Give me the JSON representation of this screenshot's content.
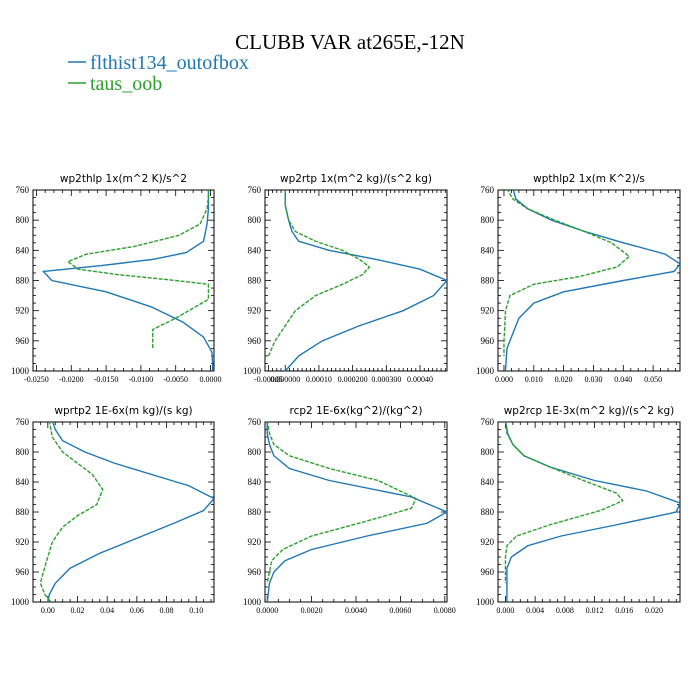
{
  "title": "CLUBB VAR at265E,-12N",
  "legend": [
    {
      "label": "flthist134_outofbox",
      "color": "#1f77b4",
      "dash": "solid"
    },
    {
      "label": "taus_oob",
      "color": "#2ca02c",
      "dash": "dashed"
    }
  ],
  "chart_data": [
    {
      "type": "line",
      "title": "wp2thlp  1x(m^2 K)/s^2",
      "xlim": [
        -0.0255,
        0.0005
      ],
      "ylim": [
        760,
        1000
      ],
      "y_inverted": true,
      "yticks": [
        "760",
        "800",
        "840",
        "880",
        "920",
        "960",
        "1000"
      ],
      "xticks": [
        {
          "v": -0.025,
          "label": "-0.0250"
        },
        {
          "v": -0.02,
          "label": "-0.0200"
        },
        {
          "v": -0.015,
          "label": "-0.0150"
        },
        {
          "v": -0.01,
          "label": "-0.0100"
        },
        {
          "v": -0.005,
          "label": "-0.0050"
        },
        {
          "v": 0.0,
          "label": "0.0000"
        }
      ],
      "series": [
        {
          "name": "flthist134_outofbox",
          "color": "#1f77b4",
          "dash": "solid",
          "x": [
            -0.0003,
            -0.0003,
            -0.0003,
            -0.0005,
            -0.001,
            -0.0035,
            -0.0083,
            -0.0155,
            -0.024,
            -0.0228,
            -0.015,
            -0.0085,
            -0.004,
            -0.001,
            0.0002,
            0.0003,
            0.0003,
            0.0003
          ],
          "y": [
            758,
            770,
            785,
            805,
            828,
            843,
            852,
            860,
            868,
            880,
            895,
            915,
            935,
            955,
            975,
            990,
            995,
            1000
          ]
        },
        {
          "name": "taus_oob",
          "color": "#2ca02c",
          "dash": "dashed",
          "x": [
            -0.0003,
            -0.0003,
            -0.0005,
            -0.0015,
            -0.0045,
            -0.011,
            -0.0178,
            -0.0205,
            -0.019,
            -0.0135,
            -0.005,
            -0.0003,
            -0.0003,
            -0.005,
            -0.0083,
            -0.0083,
            -0.0083
          ],
          "y": [
            758,
            770,
            785,
            805,
            820,
            835,
            845,
            855,
            865,
            872,
            880,
            885,
            905,
            930,
            945,
            965,
            970
          ]
        }
      ]
    },
    {
      "type": "line",
      "title": "wp2rtp  1x(m^2 kg)/(s^2 kg)",
      "xlim": [
        -6e-05,
        0.00048
      ],
      "ylim": [
        760,
        1000
      ],
      "y_inverted": true,
      "yticks": [
        "760",
        "800",
        "840",
        "880",
        "920",
        "960",
        "1000"
      ],
      "xticks": [
        {
          "v": -5e-05,
          "label": "-0.00005"
        },
        {
          "v": 0.0,
          "label": "0.000000"
        },
        {
          "v": 0.0001,
          "label": "0.00010"
        },
        {
          "v": 0.0002,
          "label": "0.000200"
        },
        {
          "v": 0.0003,
          "label": "0.000300"
        },
        {
          "v": 0.0004,
          "label": "0.00040"
        }
      ],
      "series": [
        {
          "name": "flthist134_outofbox",
          "color": "#1f77b4",
          "dash": "solid",
          "x": [
            0.0,
            0.0,
            1e-05,
            2e-05,
            4e-05,
            0.00013,
            0.00027,
            0.0004,
            0.00048,
            0.00044,
            0.00035,
            0.00022,
            0.00011,
            4e-05,
            1e-05,
            0.0
          ],
          "y": [
            758,
            780,
            800,
            815,
            828,
            840,
            852,
            865,
            880,
            900,
            920,
            940,
            960,
            980,
            995,
            1000
          ]
        },
        {
          "name": "taus_oob",
          "color": "#2ca02c",
          "dash": "dashed",
          "x": [
            0.0,
            0.0,
            1e-05,
            3e-05,
            9e-05,
            0.00017,
            0.00022,
            0.00025,
            0.00023,
            0.00017,
            9e-05,
            3e-05,
            0.0,
            -3e-05,
            -5e-05
          ],
          "y": [
            758,
            780,
            800,
            815,
            828,
            840,
            852,
            862,
            872,
            885,
            900,
            920,
            940,
            960,
            980
          ]
        }
      ]
    },
    {
      "type": "line",
      "title": "wpthlp2  1x(m K^2)/s",
      "xlim": [
        -0.002,
        0.059
      ],
      "ylim": [
        760,
        1000
      ],
      "y_inverted": true,
      "yticks": [
        "760",
        "800",
        "840",
        "880",
        "920",
        "960",
        "1000"
      ],
      "xticks": [
        {
          "v": 0.0,
          "label": "0.000"
        },
        {
          "v": 0.01,
          "label": "0.010"
        },
        {
          "v": 0.02,
          "label": "0.020"
        },
        {
          "v": 0.03,
          "label": "0.030"
        },
        {
          "v": 0.04,
          "label": "0.040"
        },
        {
          "v": 0.05,
          "label": "0.050"
        }
      ],
      "series": [
        {
          "name": "flthist134_outofbox",
          "color": "#1f77b4",
          "dash": "solid",
          "x": [
            0.003,
            0.004,
            0.008,
            0.016,
            0.027,
            0.04,
            0.054,
            0.059,
            0.057,
            0.04,
            0.02,
            0.01,
            0.005,
            0.003,
            0.001,
            0.0005
          ],
          "y": [
            758,
            772,
            785,
            800,
            815,
            830,
            845,
            858,
            868,
            880,
            895,
            910,
            930,
            950,
            970,
            1000
          ]
        },
        {
          "name": "taus_oob",
          "color": "#2ca02c",
          "dash": "dashed",
          "x": [
            0.001,
            0.003,
            0.008,
            0.017,
            0.027,
            0.036,
            0.042,
            0.038,
            0.025,
            0.01,
            0.002,
            0.0005,
            0.0003,
            0.0,
            0.0
          ],
          "y": [
            758,
            772,
            785,
            800,
            815,
            830,
            848,
            862,
            875,
            885,
            900,
            920,
            940,
            960,
            980
          ]
        }
      ]
    },
    {
      "type": "line",
      "title": "wprtp2  1E-6x(m kg)/(s kg)",
      "xlim": [
        -0.01,
        0.112
      ],
      "ylim": [
        760,
        1000
      ],
      "y_inverted": true,
      "yticks": [
        "760",
        "800",
        "840",
        "880",
        "920",
        "960",
        "1000"
      ],
      "xticks": [
        {
          "v": 0.0,
          "label": "0.00"
        },
        {
          "v": 0.02,
          "label": "0.02"
        },
        {
          "v": 0.04,
          "label": "0.04"
        },
        {
          "v": 0.06,
          "label": "0.06"
        },
        {
          "v": 0.08,
          "label": "0.08"
        },
        {
          "v": 0.1,
          "label": "0.10"
        }
      ],
      "series": [
        {
          "name": "flthist134_outofbox",
          "color": "#1f77b4",
          "dash": "solid",
          "x": [
            0.003,
            0.005,
            0.01,
            0.025,
            0.045,
            0.07,
            0.095,
            0.112,
            0.105,
            0.085,
            0.06,
            0.035,
            0.015,
            0.005,
            0.001,
            0.0
          ],
          "y": [
            758,
            770,
            785,
            800,
            815,
            830,
            845,
            862,
            878,
            895,
            915,
            935,
            955,
            975,
            990,
            1000
          ]
        },
        {
          "name": "taus_oob",
          "color": "#2ca02c",
          "dash": "dashed",
          "x": [
            0.001,
            0.003,
            0.01,
            0.02,
            0.03,
            0.037,
            0.033,
            0.02,
            0.01,
            0.003,
            0.0,
            -0.003,
            -0.005,
            -0.002,
            0.002
          ],
          "y": [
            758,
            780,
            800,
            815,
            830,
            850,
            870,
            885,
            900,
            920,
            940,
            960,
            975,
            990,
            1000
          ]
        }
      ]
    },
    {
      "type": "line",
      "title": "rcp2  1E-6x(kg^2)/(kg^2)",
      "xlim": [
        -0.0001,
        0.0081
      ],
      "ylim": [
        760,
        1000
      ],
      "y_inverted": true,
      "yticks": [
        "760",
        "800",
        "840",
        "880",
        "920",
        "960",
        "1000"
      ],
      "xticks": [
        {
          "v": 0.0,
          "label": "0.0000"
        },
        {
          "v": 0.002,
          "label": "0.0020"
        },
        {
          "v": 0.004,
          "label": "0.0040"
        },
        {
          "v": 0.006,
          "label": "0.0060"
        },
        {
          "v": 0.008,
          "label": "0.0080"
        }
      ],
      "series": [
        {
          "name": "flthist134_outofbox",
          "color": "#1f77b4",
          "dash": "solid",
          "x": [
            0.0,
            0.0,
            0.0001,
            0.0003,
            0.001,
            0.0028,
            0.0065,
            0.0081,
            0.0072,
            0.0045,
            0.002,
            0.0008,
            0.0003,
            0.0001,
            0.0
          ],
          "y": [
            758,
            775,
            790,
            805,
            822,
            838,
            860,
            880,
            895,
            912,
            930,
            945,
            960,
            975,
            1000
          ]
        },
        {
          "name": "taus_oob",
          "color": "#2ca02c",
          "dash": "dashed",
          "x": [
            0.0,
            0.0001,
            0.0003,
            0.001,
            0.0028,
            0.005,
            0.0067,
            0.0065,
            0.0045,
            0.002,
            0.0007,
            0.0002,
            0.0001,
            0.0
          ],
          "y": [
            758,
            775,
            790,
            805,
            822,
            838,
            862,
            875,
            892,
            912,
            930,
            945,
            960,
            975
          ]
        }
      ]
    },
    {
      "type": "line",
      "title": "wp2rcp  1E-3x(m^2 kg)/(s^2 kg)",
      "xlim": [
        -0.001,
        0.0235
      ],
      "ylim": [
        760,
        1000
      ],
      "y_inverted": true,
      "yticks": [
        "760",
        "800",
        "840",
        "880",
        "920",
        "960",
        "1000"
      ],
      "xticks": [
        {
          "v": 0.0,
          "label": "0.000"
        },
        {
          "v": 0.004,
          "label": "0.004"
        },
        {
          "v": 0.008,
          "label": "0.008"
        },
        {
          "v": 0.012,
          "label": "0.012"
        },
        {
          "v": 0.016,
          "label": "0.016"
        },
        {
          "v": 0.02,
          "label": "0.020"
        }
      ],
      "series": [
        {
          "name": "flthist134_outofbox",
          "color": "#1f77b4",
          "dash": "solid",
          "x": [
            0.0,
            0.0003,
            0.001,
            0.0025,
            0.006,
            0.012,
            0.019,
            0.0235,
            0.023,
            0.015,
            0.0075,
            0.003,
            0.0008,
            0.0002,
            0.0002,
            0.0002
          ],
          "y": [
            758,
            775,
            790,
            805,
            820,
            838,
            852,
            868,
            880,
            897,
            912,
            925,
            940,
            955,
            975,
            1000
          ]
        },
        {
          "name": "taus_oob",
          "color": "#2ca02c",
          "dash": "dashed",
          "x": [
            0.0,
            0.0002,
            0.001,
            0.0025,
            0.006,
            0.0105,
            0.015,
            0.0158,
            0.0128,
            0.006,
            0.0015,
            0.0002,
            0.0,
            0.0,
            0.0
          ],
          "y": [
            758,
            775,
            790,
            805,
            820,
            838,
            855,
            865,
            878,
            897,
            912,
            925,
            940,
            955,
            975
          ]
        }
      ]
    }
  ]
}
